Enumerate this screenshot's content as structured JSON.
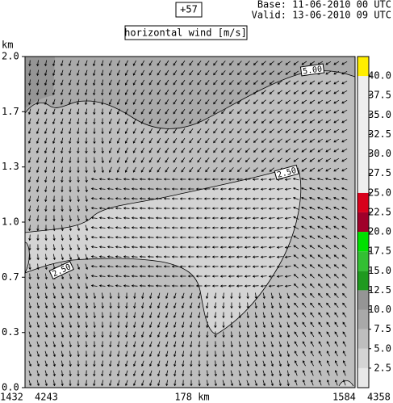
{
  "chart_data": {
    "type": "contour",
    "label_box": "+57",
    "base": "Base: 11-06-2010  00 UTC",
    "valid": "Valid: 13-06-2010  09 UTC",
    "title": "horizontal wind [m/s]",
    "y_label": "km",
    "ylim": [
      0,
      2
    ],
    "yticks": [
      {
        "value": 0,
        "label": "0.0"
      },
      {
        "value": 0.333,
        "label": "0.3"
      },
      {
        "value": 0.667,
        "label": "0.7"
      },
      {
        "value": 1,
        "label": "1.0"
      },
      {
        "value": 1.333,
        "label": "1.3"
      },
      {
        "value": 1.667,
        "label": "1.7"
      },
      {
        "value": 2,
        "label": "2.0"
      }
    ],
    "x_labels": [
      "1432",
      "4243",
      "178 km",
      "1584",
      "4358"
    ],
    "contour_labels": [
      "5.00",
      "2.50",
      "2.50"
    ],
    "colorbar": {
      "levels": [
        0,
        2.5,
        5,
        7.5,
        10,
        12.5,
        15,
        17.5,
        20,
        22.5,
        25,
        27.5,
        30,
        32.5,
        35,
        37.5,
        40,
        42.5
      ],
      "colors": [
        "#e8e8e8",
        "#d4d4d4",
        "#bebebe",
        "#a9a9a9",
        "#959595",
        "#1f9a1f",
        "#33c033",
        "#00e000",
        "#a0002a",
        "#d8001c",
        "#eeeeee",
        "#eeeeee",
        "#eeeeee",
        "#eeeeee",
        "#eeeeee",
        "#eeeeee",
        "#ffee00"
      ],
      "ticks": [
        2.5,
        {
          "value": 5,
          "label": "5.0"
        },
        7.5,
        {
          "value": 10,
          "label": "10.0"
        },
        12.5,
        {
          "value": 15,
          "label": "15.0"
        },
        17.5,
        {
          "value": 20,
          "label": "20.0"
        },
        22.5,
        {
          "value": 25,
          "label": "25.0"
        },
        27.5,
        {
          "value": 30,
          "label": "30.0"
        },
        32.5,
        {
          "value": 35,
          "label": "35.0"
        },
        37.5,
        {
          "value": 40,
          "label": "40.0"
        }
      ]
    }
  }
}
